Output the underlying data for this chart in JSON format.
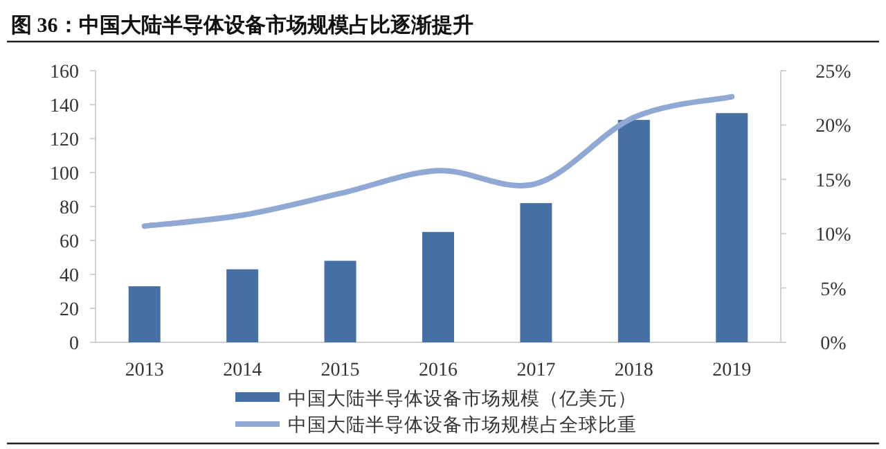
{
  "chart_data": {
    "type": "bar",
    "title": "图 36：中国大陆半导体设备市场规模占比逐渐提升",
    "categories": [
      "2013",
      "2014",
      "2015",
      "2016",
      "2017",
      "2018",
      "2019"
    ],
    "series": [
      {
        "name": "中国大陆半导体设备市场规模（亿美元）",
        "color": "#4470a4",
        "values": [
          33,
          43,
          48,
          65,
          82,
          131,
          135
        ]
      },
      {
        "name": "中国大陆半导体设备市场规模占全球比重",
        "type": "line",
        "axis": "y2",
        "color": "#8fa8d4",
        "values": [
          10.7,
          11.7,
          13.7,
          15.8,
          14.6,
          20.7,
          22.6
        ]
      }
    ],
    "ylim": [
      0,
      160
    ],
    "yticks": [
      0,
      20,
      40,
      60,
      80,
      100,
      120,
      140,
      160
    ],
    "y2lim": [
      0,
      25
    ],
    "y2ticks": [
      {
        "value": 0,
        "label": "0%"
      },
      {
        "value": 5,
        "label": "5%"
      },
      {
        "value": 10,
        "label": "10%"
      },
      {
        "value": 15,
        "label": "15%"
      },
      {
        "value": 20,
        "label": "20%"
      },
      {
        "value": 25,
        "label": "25%"
      }
    ],
    "legend": "bottom",
    "grid": false
  }
}
